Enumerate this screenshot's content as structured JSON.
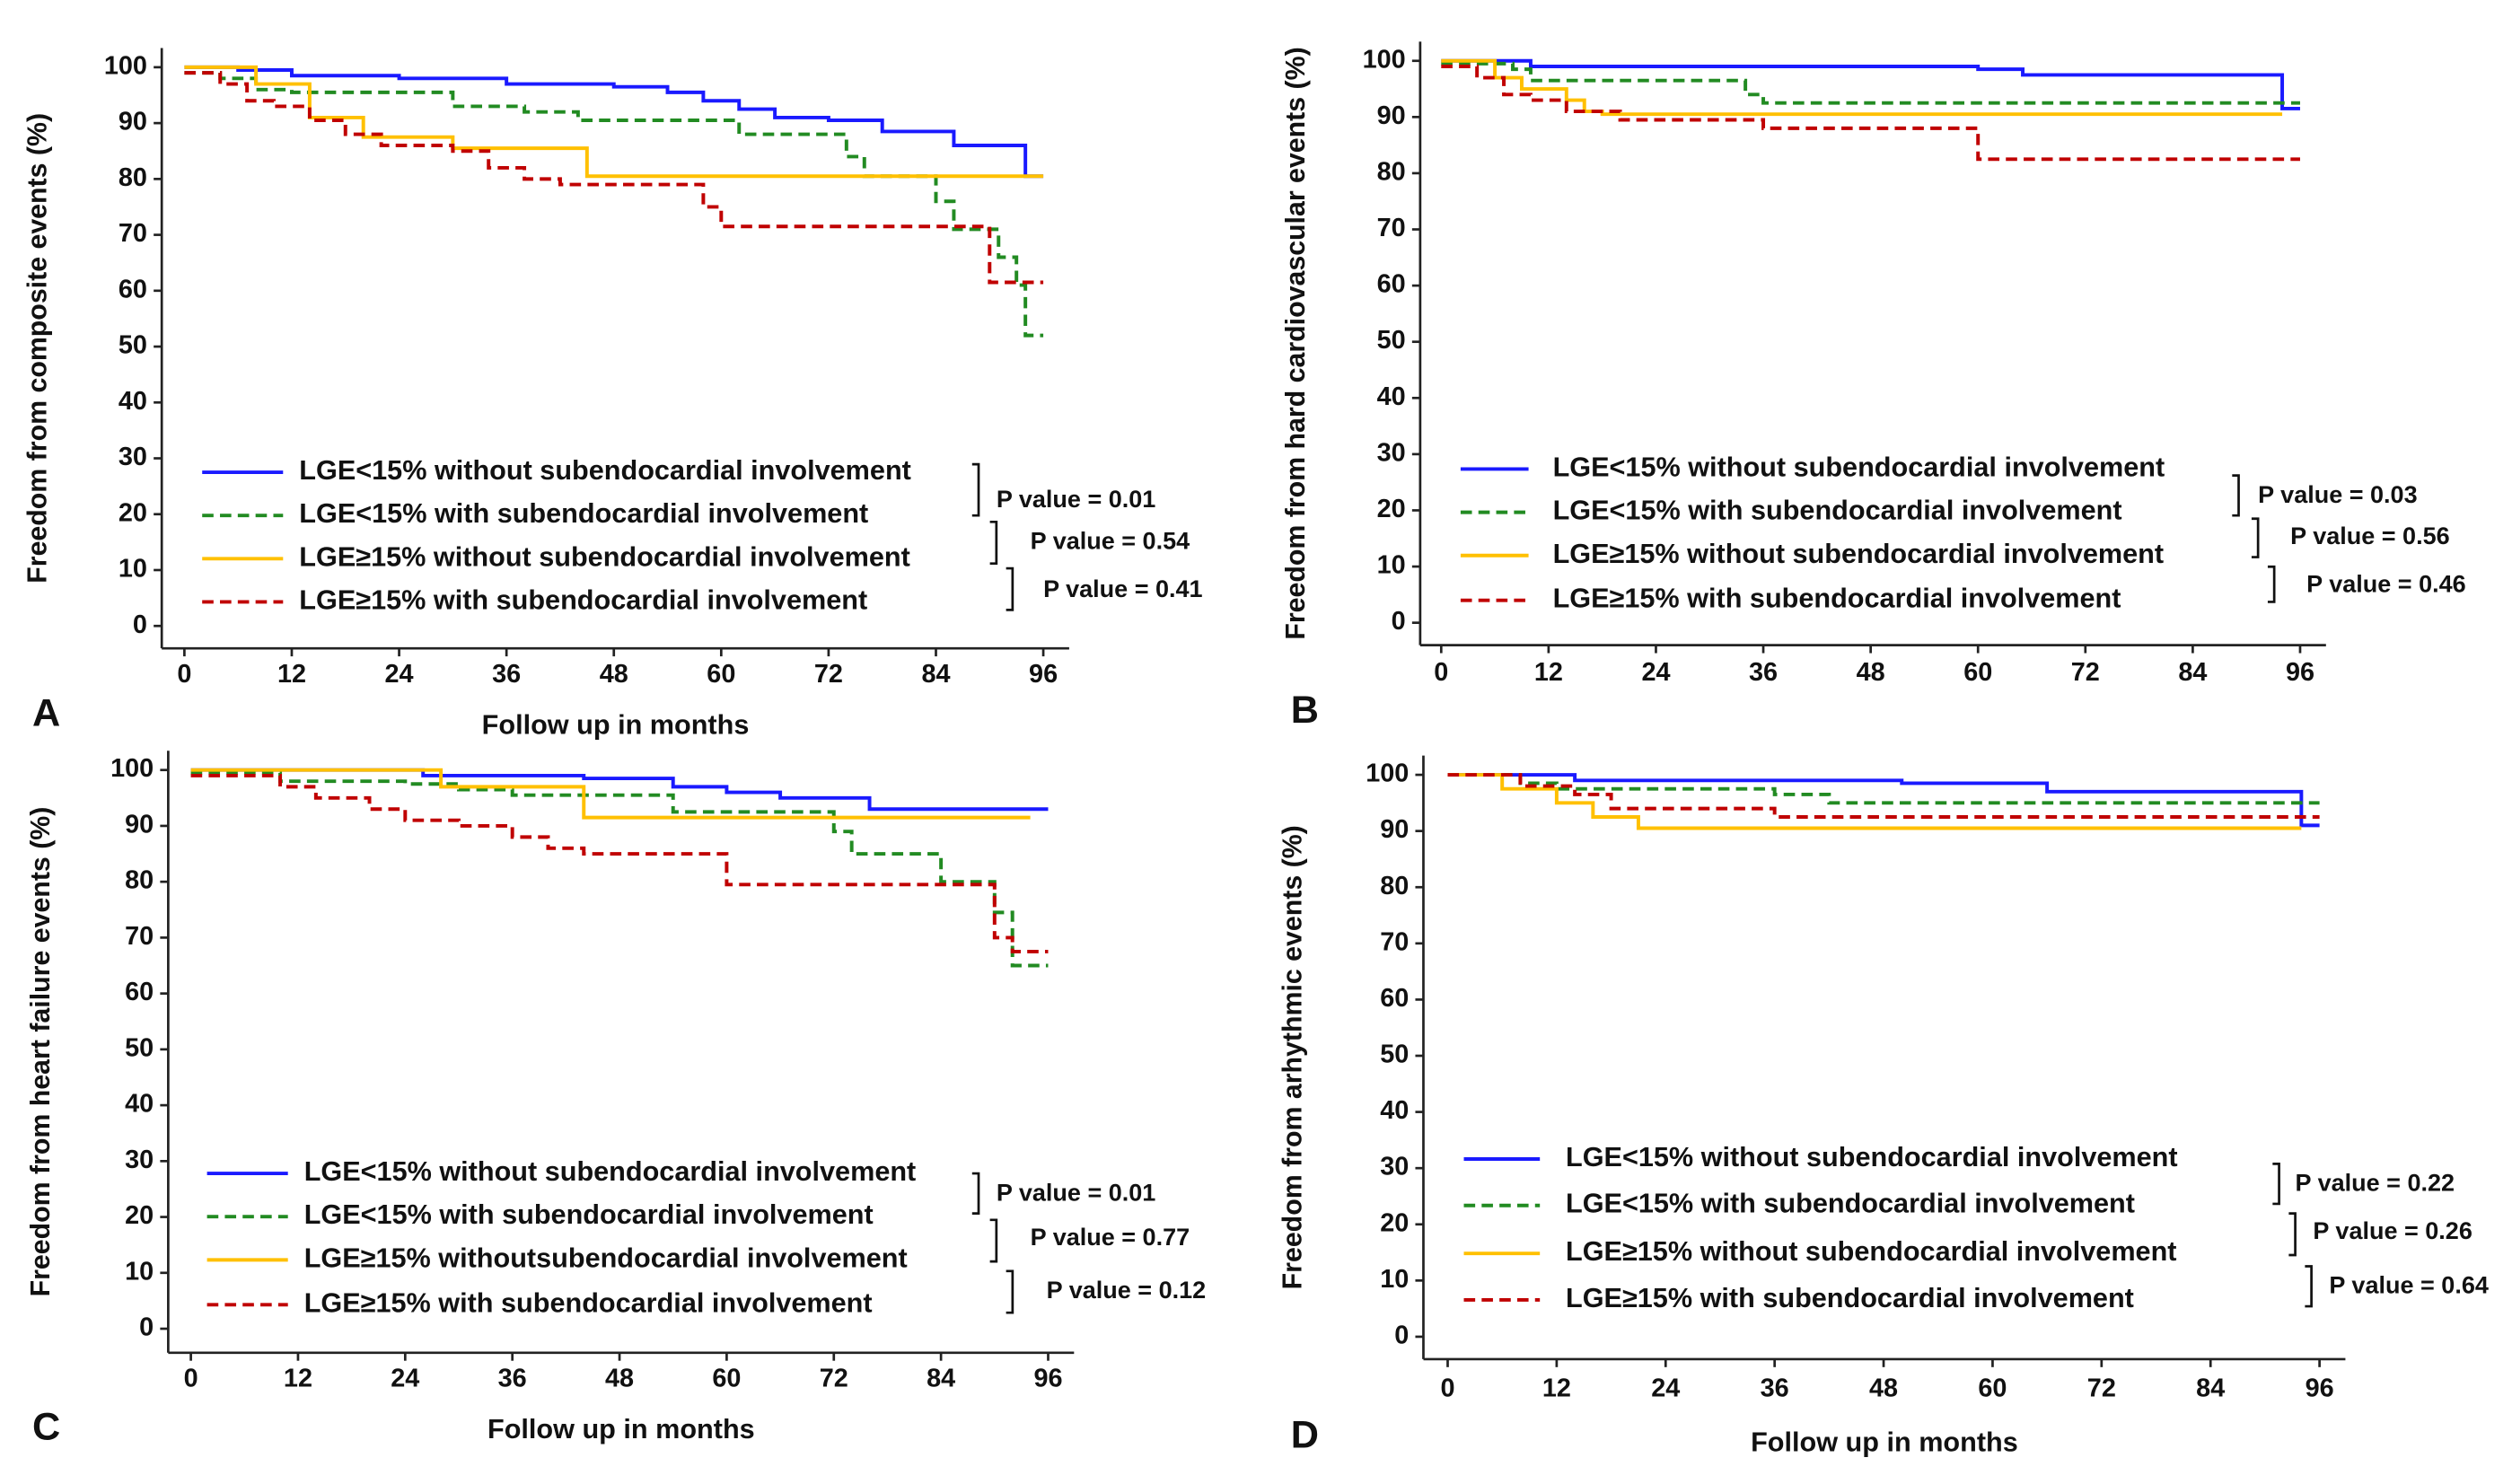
{
  "chart_data": [
    {
      "type": "line",
      "step": true,
      "panel_label": "A",
      "xlabel": "Follow up in months",
      "ylabel": "Freedom from composite events (%)",
      "xlim": [
        0,
        96
      ],
      "xticks": [
        0,
        12,
        24,
        36,
        48,
        60,
        72,
        84,
        96
      ],
      "ylim": [
        0,
        100
      ],
      "yticks": [
        0,
        10,
        20,
        30,
        40,
        50,
        60,
        70,
        80,
        90,
        100
      ],
      "series": [
        {
          "name": "LGE<15% without  subendocardial involvement",
          "color": "#1a1aff",
          "dashed": false,
          "x": [
            0,
            6,
            12,
            24,
            36,
            48,
            54,
            58,
            62,
            66,
            72,
            78,
            86,
            94,
            96
          ],
          "values": [
            100,
            99.5,
            98.5,
            98,
            97,
            96.5,
            95.5,
            94,
            92.5,
            91,
            90.5,
            88.5,
            86,
            80.5,
            80.5
          ]
        },
        {
          "name": "LGE<15% with  subendocardial involvement",
          "color": "#228b22",
          "dashed": true,
          "x": [
            0,
            4,
            8,
            12,
            30,
            38,
            44,
            62,
            74,
            76,
            84,
            86,
            91,
            93,
            94,
            96
          ],
          "values": [
            99,
            98,
            96,
            95.5,
            93,
            92,
            90.5,
            88,
            84,
            80.5,
            76,
            71,
            66,
            61,
            52,
            52
          ]
        },
        {
          "name": "LGE≥15% without  subendocardial involvement",
          "color": "#ffc000",
          "dashed": false,
          "x": [
            0,
            8,
            14,
            20,
            30,
            45,
            96
          ],
          "values": [
            100,
            97,
            91,
            87.5,
            85.5,
            80.5,
            80.5
          ]
        },
        {
          "name": "LGE≥15% with  subendocardial involvement",
          "color": "#c00000",
          "dashed": true,
          "x": [
            0,
            4,
            7,
            10,
            14,
            18,
            22,
            30,
            34,
            38,
            42,
            58,
            60,
            90,
            96
          ],
          "values": [
            99,
            97,
            94,
            93,
            90.5,
            88,
            86,
            85,
            82,
            80,
            79,
            75,
            71.5,
            61.5,
            61.5
          ]
        }
      ],
      "annotations": [
        "P value = 0.01",
        "P value = 0.54",
        "P value = 0.41"
      ]
    },
    {
      "type": "line",
      "step": true,
      "panel_label": "B",
      "ylabel": "Freedom from hard cardiovascular events (%)",
      "xlim": [
        0,
        96
      ],
      "xticks": [
        0,
        12,
        24,
        36,
        48,
        60,
        72,
        84,
        96
      ],
      "ylim": [
        0,
        100
      ],
      "yticks": [
        0,
        10,
        20,
        30,
        40,
        50,
        60,
        70,
        80,
        90,
        100
      ],
      "series": [
        {
          "name": "LGE<15% without  subendocardial involvement",
          "color": "#1a1aff",
          "dashed": false,
          "x": [
            0,
            10,
            60,
            65,
            94,
            96
          ],
          "values": [
            100,
            99,
            98.5,
            97.5,
            91.5,
            91.5
          ]
        },
        {
          "name": "LGE<15% with  subendocardial involvement",
          "color": "#228b22",
          "dashed": true,
          "x": [
            0,
            8,
            10,
            34,
            36,
            96
          ],
          "values": [
            99.5,
            98.5,
            96.5,
            94,
            92.5,
            92.5
          ]
        },
        {
          "name": "LGE≥15% without  subendocardial involvement",
          "color": "#ffc000",
          "dashed": false,
          "x": [
            0,
            6,
            9,
            14,
            16,
            18,
            94
          ],
          "values": [
            100,
            97,
            95,
            93,
            91,
            90.5,
            90.5
          ]
        },
        {
          "name": "LGE≥15% with  subendocardial involvement",
          "color": "#c00000",
          "dashed": true,
          "x": [
            0,
            4,
            7,
            10,
            14,
            20,
            36,
            60,
            96
          ],
          "values": [
            99,
            97,
            94,
            93,
            91,
            89.5,
            88,
            82.5,
            82.5
          ]
        }
      ],
      "annotations": [
        "P value = 0.03",
        "P value = 0.56",
        "P value = 0.46"
      ]
    },
    {
      "type": "line",
      "step": true,
      "panel_label": "C",
      "xlabel": "Follow up in months",
      "ylabel": "Freedom from heart failure events (%)",
      "xlim": [
        0,
        96
      ],
      "xticks": [
        0,
        12,
        24,
        36,
        48,
        60,
        72,
        84,
        96
      ],
      "ylim": [
        0,
        100
      ],
      "yticks": [
        0,
        10,
        20,
        30,
        40,
        50,
        60,
        70,
        80,
        90,
        100
      ],
      "series": [
        {
          "name": "LGE<15% without subendocardial involvement",
          "color": "#1a1aff",
          "dashed": false,
          "x": [
            0,
            26,
            44,
            54,
            60,
            66,
            76,
            96
          ],
          "values": [
            100,
            99,
            98.5,
            97,
            96,
            95,
            93,
            93
          ]
        },
        {
          "name": "LGE<15% with subendocardial involvement",
          "color": "#228b22",
          "dashed": true,
          "x": [
            0,
            10,
            24,
            30,
            36,
            54,
            72,
            74,
            84,
            90,
            92,
            96
          ],
          "values": [
            99.5,
            98,
            97.5,
            96.5,
            95.5,
            92.5,
            89,
            85,
            80,
            74.5,
            65,
            65
          ]
        },
        {
          "name": "LGE≥15% withoutsubendocardial involvement",
          "color": "#ffc000",
          "dashed": false,
          "x": [
            0,
            28,
            44,
            94
          ],
          "values": [
            100,
            97,
            91.5,
            91.5
          ]
        },
        {
          "name": "LGE≥15% with subendocardial involvement",
          "color": "#c00000",
          "dashed": true,
          "x": [
            0,
            10,
            14,
            20,
            24,
            30,
            36,
            40,
            44,
            60,
            90,
            92,
            96
          ],
          "values": [
            99,
            97,
            95,
            93,
            91,
            90,
            88,
            86,
            85,
            79.5,
            70,
            67.5,
            67.5
          ]
        }
      ],
      "annotations": [
        "P value = 0.01",
        "P value = 0.77",
        "P value = 0.12"
      ]
    },
    {
      "type": "line",
      "step": true,
      "panel_label": "D",
      "xlabel": "Follow up in months",
      "ylabel": "Freedom from arhythmic events (%)",
      "xlim": [
        0,
        96
      ],
      "xticks": [
        0,
        12,
        24,
        36,
        48,
        60,
        72,
        84,
        96
      ],
      "ylim": [
        0,
        100
      ],
      "yticks": [
        0,
        10,
        20,
        30,
        40,
        50,
        60,
        70,
        80,
        90,
        100
      ],
      "series": [
        {
          "name": "LGE<15% without subendocardial involvement",
          "color": "#1a1aff",
          "dashed": false,
          "x": [
            0,
            14,
            50,
            66,
            94,
            96
          ],
          "values": [
            100,
            99,
            98.5,
            97,
            91,
            91
          ]
        },
        {
          "name": "LGE<15% with subendocardial involvement",
          "color": "#228b22",
          "dashed": true,
          "x": [
            0,
            8,
            12,
            36,
            42,
            96
          ],
          "values": [
            100,
            98.5,
            97.5,
            96.5,
            95,
            95
          ]
        },
        {
          "name": "LGE≥15% without subendocardial involvement",
          "color": "#ffc000",
          "dashed": false,
          "x": [
            0,
            6,
            12,
            16,
            21,
            94
          ],
          "values": [
            100,
            97.5,
            95,
            92.5,
            90.5,
            90.5
          ]
        },
        {
          "name": "LGE≥15% with subendocardial involvement",
          "color": "#c00000",
          "dashed": true,
          "x": [
            0,
            8,
            14,
            18,
            36,
            96
          ],
          "values": [
            100,
            98,
            96.5,
            94,
            92.5,
            92.5
          ]
        }
      ],
      "annotations": [
        "P value = 0.22",
        "P value = 0.26",
        "P value = 0.64"
      ]
    }
  ]
}
